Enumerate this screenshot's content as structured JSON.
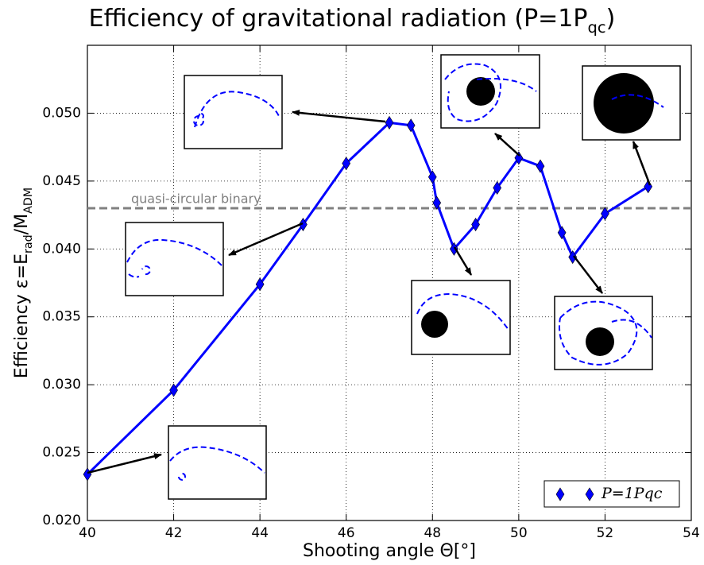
{
  "chart_data": {
    "type": "line",
    "title": [
      "Efficiency of gravitational radiation (P=1P",
      "qc",
      ")"
    ],
    "xlabel": [
      "Shooting angle Θ[°]"
    ],
    "ylabel": [
      "Efficiency ε=E",
      "rad",
      "/M",
      "ADM"
    ],
    "x": [
      40,
      42,
      44,
      45,
      46,
      47,
      47.5,
      48,
      48.1,
      48.5,
      49,
      49.5,
      50,
      50.5,
      51,
      51.25,
      52,
      53
    ],
    "series": [
      {
        "name": "P=1Pqc",
        "color": "#0000ff",
        "values": [
          0.0234,
          0.0296,
          0.0374,
          0.0418,
          0.0463,
          0.0493,
          0.0491,
          0.0453,
          0.0434,
          0.04,
          0.0418,
          0.0445,
          0.0467,
          0.0461,
          0.0412,
          0.0394,
          0.0426,
          0.0446
        ]
      }
    ],
    "xlim": [
      40,
      54
    ],
    "xticks": [
      40,
      42,
      44,
      46,
      48,
      50,
      52,
      54
    ],
    "ylim": [
      0.02,
      0.055
    ],
    "yticks": [
      {
        "value": 0.02,
        "label": "0.020"
      },
      {
        "value": 0.025,
        "label": "0.025"
      },
      {
        "value": 0.03,
        "label": "0.030"
      },
      {
        "value": 0.035,
        "label": "0.035"
      },
      {
        "value": 0.04,
        "label": "0.040"
      },
      {
        "value": 0.045,
        "label": "0.045"
      },
      {
        "value": 0.05,
        "label": "0.050"
      }
    ],
    "reference_line": {
      "value": 0.043,
      "label": "quasi-circular binary",
      "color": "#808080"
    },
    "grid": true,
    "legend": "lower right"
  }
}
